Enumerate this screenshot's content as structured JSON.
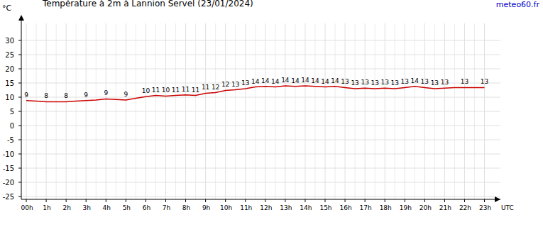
{
  "chart_data": {
    "type": "line",
    "title": "Température à 2m à Lannion Servel (23/01/2024)",
    "y_label": "°C",
    "x_label": "UTC",
    "annotations": [
      "meteo60.fr"
    ],
    "x": [
      0,
      0.5,
      1,
      1.5,
      2,
      2.5,
      3,
      3.5,
      4,
      4.5,
      5,
      5.5,
      6,
      6.5,
      7,
      7.5,
      8,
      8.5,
      9,
      9.5,
      10,
      10.5,
      11,
      11.5,
      12,
      12.5,
      13,
      13.5,
      14,
      14.5,
      15,
      15.5,
      16,
      16.5,
      17,
      17.5,
      18,
      18.5,
      19,
      19.5,
      20,
      20.5,
      21,
      21.5,
      22,
      22.5,
      23
    ],
    "values": [
      8.8,
      8.6,
      8.4,
      8.4,
      8.4,
      8.6,
      8.8,
      9.0,
      9.4,
      9.2,
      9.0,
      9.6,
      10.2,
      10.6,
      10.4,
      10.6,
      10.8,
      10.6,
      11.4,
      11.6,
      12.4,
      12.6,
      13.0,
      13.6,
      13.8,
      13.6,
      14.0,
      13.8,
      14.0,
      13.8,
      13.6,
      13.8,
      13.4,
      13.0,
      13.2,
      13.0,
      13.2,
      13.0,
      13.4,
      13.8,
      13.4,
      13.0,
      13.2,
      13.4,
      13.4,
      13.4,
      13.4
    ],
    "value_labels": [
      "9",
      null,
      "8",
      null,
      "8",
      null,
      "9",
      null,
      "9",
      null,
      "9",
      null,
      "10",
      "11",
      "10",
      "11",
      "11",
      "11",
      "11",
      "12",
      "12",
      "13",
      "13",
      "14",
      "14",
      "14",
      "14",
      "14",
      "14",
      "14",
      "14",
      "14",
      "13",
      "13",
      "13",
      "13",
      "13",
      "13",
      "13",
      "14",
      "13",
      "13",
      "13",
      null,
      "13",
      null,
      "13"
    ],
    "data_labels": true,
    "color": "#cc0000",
    "grid": true,
    "xlim": [
      -0.25,
      23.8
    ],
    "xticks": [
      {
        "value": 0,
        "label": "00h"
      },
      {
        "value": 1,
        "label": "1h"
      },
      {
        "value": 2,
        "label": "2h"
      },
      {
        "value": 3,
        "label": "3h"
      },
      {
        "value": 4,
        "label": "4h"
      },
      {
        "value": 5,
        "label": "5h"
      },
      {
        "value": 6,
        "label": "6h"
      },
      {
        "value": 7,
        "label": "7h"
      },
      {
        "value": 8,
        "label": "8h"
      },
      {
        "value": 9,
        "label": "9h"
      },
      {
        "value": 10,
        "label": "10h"
      },
      {
        "value": 11,
        "label": "11h"
      },
      {
        "value": 12,
        "label": "12h"
      },
      {
        "value": 13,
        "label": "13h"
      },
      {
        "value": 14,
        "label": "14h"
      },
      {
        "value": 15,
        "label": "15h"
      },
      {
        "value": 16,
        "label": "16h"
      },
      {
        "value": 17,
        "label": "17h"
      },
      {
        "value": 18,
        "label": "18h"
      },
      {
        "value": 19,
        "label": "19h"
      },
      {
        "value": 20,
        "label": "20h"
      },
      {
        "value": 21,
        "label": "21h"
      },
      {
        "value": 22,
        "label": "22h"
      },
      {
        "value": 23,
        "label": "23h"
      }
    ],
    "ylim": [
      -26,
      36
    ],
    "yticks": [
      -25,
      -20,
      -15,
      -10,
      -5,
      0,
      5,
      10,
      15,
      20,
      25,
      30
    ]
  }
}
